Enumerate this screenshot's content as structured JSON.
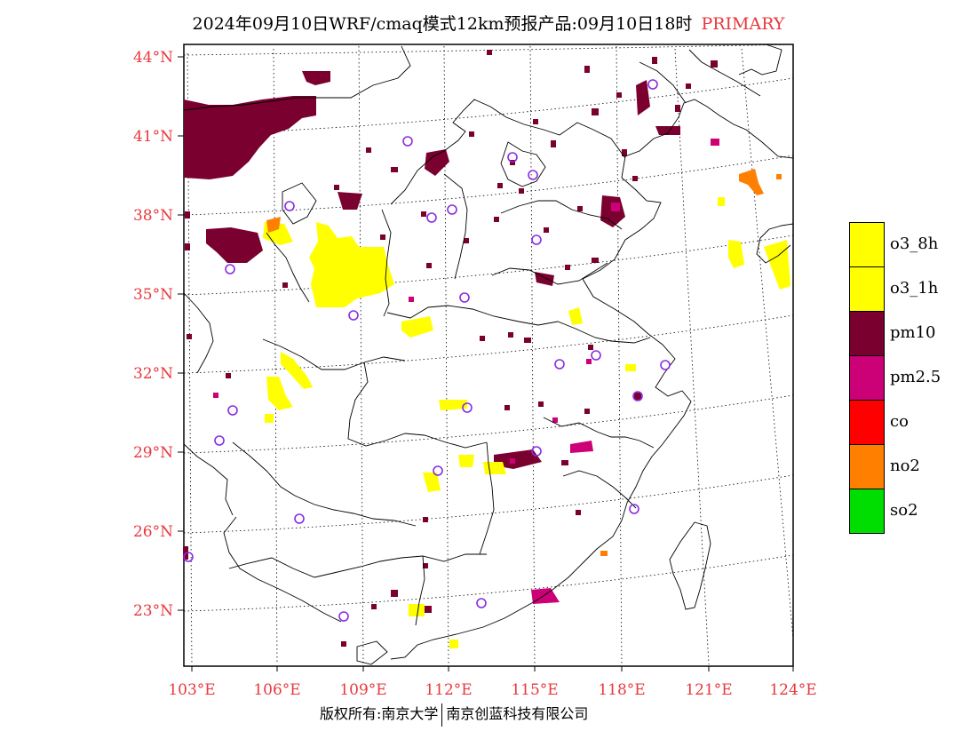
{
  "title": {
    "main": "2024年09月10日WRF/cmaq模式12km预报产品:09月10日18时",
    "tag": "PRIMARY"
  },
  "colors": {
    "o3_8h": "#ffff00",
    "o3_1h": "#ffff00",
    "pm10": "#7a0030",
    "pm25": "#cc0077",
    "co": "#ff0000",
    "no2": "#ff7f00",
    "so2": "#00dd00",
    "axis_label": "#e8383d",
    "station": "#8a2be2"
  },
  "axes": {
    "lon_labels": [
      "103°E",
      "106°E",
      "109°E",
      "112°E",
      "115°E",
      "118°E",
      "121°E",
      "124°E"
    ],
    "lat_labels": [
      "44°N",
      "41°N",
      "38°N",
      "35°N",
      "32°N",
      "29°N",
      "26°N",
      "23°N"
    ]
  },
  "legend": [
    {
      "label": "o3_8h",
      "color": "#ffff00"
    },
    {
      "label": "o3_1h",
      "color": "#ffff00"
    },
    {
      "label": "pm10",
      "color": "#7a0030"
    },
    {
      "label": "pm2.5",
      "color": "#cc0077"
    },
    {
      "label": "co",
      "color": "#ff0000"
    },
    {
      "label": "no2",
      "color": "#ff7f00"
    },
    {
      "label": "so2",
      "color": "#00dd00"
    }
  ],
  "footer": {
    "left": "版权所有:南京大学",
    "right": "南京创蓝科技有限公司"
  }
}
